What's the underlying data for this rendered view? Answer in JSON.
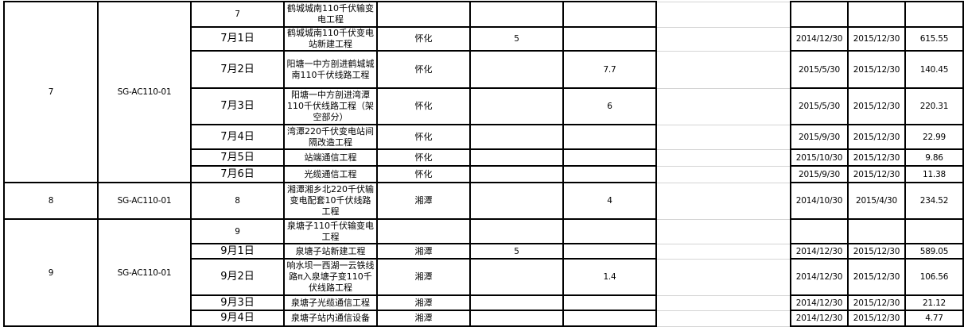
{
  "groups": [
    {
      "no": "7",
      "code": "SG-AC110-01",
      "rows": [
        {
          "item": "7",
          "name": "鹤城城南110千伏输变电工程",
          "region": "",
          "e": "",
          "f": "",
          "start": "",
          "end": "",
          "amount": ""
        },
        {
          "item": "7月1日",
          "name": "鹤城城南110千伏变电站新建工程",
          "region": "怀化",
          "e": "5",
          "f": "",
          "start": "2014/12/30",
          "end": "2015/12/30",
          "amount": "615.55"
        },
        {
          "item": "7月2日",
          "name": "阳塘一中方剖进鹤城城南110千伏线路工程",
          "region": "怀化",
          "e": "",
          "f": "7.7",
          "start": "2015/5/30",
          "end": "2015/12/30",
          "amount": "140.45"
        },
        {
          "item": "7月3日",
          "name": "阳塘一中方剖进湾潭110千伏线路工程（架空部分）",
          "region": "怀化",
          "e": "",
          "f": "6",
          "start": "2015/5/30",
          "end": "2015/12/30",
          "amount": "220.31"
        },
        {
          "item": "7月4日",
          "name": "湾潭220千伏变电站间隔改造工程",
          "region": "怀化",
          "e": "",
          "f": "",
          "start": "2015/9/30",
          "end": "2015/12/30",
          "amount": "22.99"
        },
        {
          "item": "7月5日",
          "name": "站端通信工程",
          "region": "怀化",
          "e": "",
          "f": "",
          "start": "2015/10/30",
          "end": "2015/12/30",
          "amount": "9.86"
        },
        {
          "item": "7月6日",
          "name": "光缆通信工程",
          "region": "怀化",
          "e": "",
          "f": "",
          "start": "2015/9/30",
          "end": "2015/12/30",
          "amount": "11.38"
        }
      ]
    },
    {
      "no": "8",
      "code": "SG-AC110-01",
      "rows": [
        {
          "item": "8",
          "name": "湘潭湘乡北220千伏输变电配套10千伏线路工程",
          "region": "湘潭",
          "e": "",
          "f": "4",
          "start": "2014/10/30",
          "end": "2015/4/30",
          "amount": "234.52"
        }
      ]
    },
    {
      "no": "9",
      "code": "SG-AC110-01",
      "rows": [
        {
          "item": "9",
          "name": "泉塘子110千伏输变电工程",
          "region": "",
          "e": "",
          "f": "",
          "start": "",
          "end": "",
          "amount": ""
        },
        {
          "item": "9月1日",
          "name": "泉塘子站新建工程",
          "region": "湘潭",
          "e": "5",
          "f": "",
          "start": "2014/12/30",
          "end": "2015/12/30",
          "amount": "589.05"
        },
        {
          "item": "9月2日",
          "name": "响水坝一西湖一云铁线路π入泉塘子变110千伏线路工程",
          "region": "湘潭",
          "e": "",
          "f": "1.4",
          "start": "2014/12/30",
          "end": "2015/12/30",
          "amount": "106.56"
        },
        {
          "item": "9月3日",
          "name": "泉塘子光缆通信工程",
          "region": "湘潭",
          "e": "",
          "f": "",
          "start": "2014/12/30",
          "end": "2015/12/30",
          "amount": "21.12"
        },
        {
          "item": "9月4日",
          "name": "泉塘子站内通信设备",
          "region": "湘潭",
          "e": "",
          "f": "",
          "start": "2014/12/30",
          "end": "2015/12/30",
          "amount": "4.77"
        }
      ]
    }
  ]
}
